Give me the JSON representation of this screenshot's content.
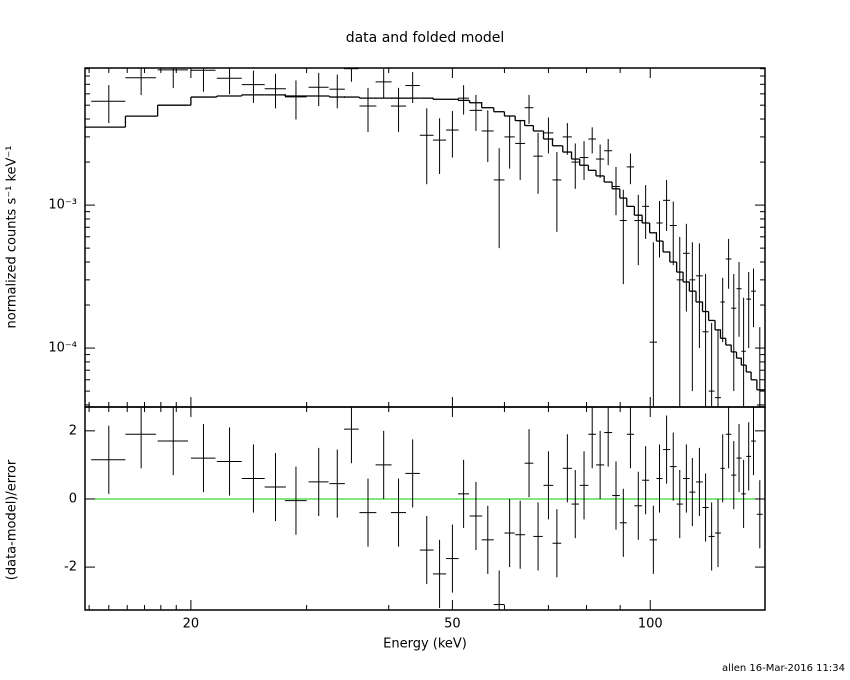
{
  "footer": "allen 16-Mar-2016 11:34",
  "chart_data": [
    {
      "type": "errorbar",
      "title": "data and folded model",
      "ylabel": "normalized counts s⁻¹ keV⁻¹",
      "xlog": true,
      "ylog": true,
      "xlim": [
        13.8,
        149.5
      ],
      "ylim": [
        3.87e-05,
        0.0091
      ],
      "xticks": [
        20,
        50,
        100
      ],
      "show_xtick_labels": false,
      "xticks_minor": [
        14,
        15,
        16,
        17,
        18,
        19,
        30,
        40,
        60,
        70,
        80,
        90
      ],
      "yticks": [
        {
          "value": 0.001,
          "label": "10⁻³"
        },
        {
          "value": 0.0001,
          "label": "10⁻⁴"
        }
      ],
      "yticks_minor": [
        4e-05,
        5e-05,
        6e-05,
        7e-05,
        8e-05,
        9e-05,
        0.0002,
        0.0003,
        0.0004,
        0.0005,
        0.0006,
        0.0007,
        0.0008,
        0.0009,
        0.002,
        0.003,
        0.004,
        0.005,
        0.006,
        0.007,
        0.008,
        0.009
      ],
      "data": {
        "color": "#000000",
        "x": [
          15.0,
          16.8,
          18.8,
          20.9,
          22.9,
          24.9,
          26.9,
          28.9,
          31.3,
          33.4,
          35.1,
          37.2,
          39.3,
          41.4,
          43.5,
          45.7,
          47.8,
          50.0,
          52.0,
          54.3,
          56.6,
          58.9,
          61.1,
          63.4,
          65.4,
          67.5,
          70.0,
          72.1,
          74.8,
          76.9,
          79.3,
          81.6,
          83.9,
          86.3,
          88.7,
          91.0,
          93.3,
          95.9,
          98.4,
          101.1,
          103.3,
          105.9,
          108.4,
          110.9,
          113.5,
          115.9,
          118.8,
          121.4,
          124.0,
          126.8,
          128.9,
          131.6,
          134.0,
          136.5,
          138.7,
          141.2,
          143.6,
          146.8
        ],
        "xerr": [
          0.9,
          0.9,
          1.0,
          0.9,
          1.0,
          1.0,
          1.0,
          1.1,
          1.1,
          0.9,
          0.9,
          1.1,
          1.1,
          1.1,
          1.1,
          1.1,
          1.1,
          1.1,
          1.0,
          1.2,
          1.2,
          1.1,
          1.1,
          1.1,
          1.0,
          1.1,
          1.2,
          1.1,
          1.2,
          1.0,
          1.2,
          1.1,
          1.2,
          1.2,
          1.2,
          1.1,
          1.2,
          1.3,
          1.2,
          1.3,
          1.1,
          1.3,
          1.3,
          1.2,
          1.3,
          1.2,
          1.4,
          1.3,
          1.3,
          1.3,
          1.0,
          1.3,
          1.2,
          1.2,
          1.1,
          1.2,
          1.2,
          1.5
        ],
        "values": [
          0.00533,
          0.00777,
          0.00883,
          0.00878,
          0.00771,
          0.00696,
          0.00652,
          0.00571,
          0.00667,
          0.00647,
          0.009,
          0.00493,
          0.00728,
          0.00493,
          0.00686,
          0.00308,
          0.00285,
          0.00335,
          0.0056,
          0.0046,
          0.0033,
          0.0015,
          0.003,
          0.0027,
          0.0048,
          0.0022,
          0.0032,
          0.0015,
          0.003,
          0.002,
          0.00215,
          0.0029,
          0.0021,
          0.0024,
          0.00135,
          0.00078,
          0.00185,
          0.00078,
          0.00098,
          0.00011,
          0.00075,
          0.00108,
          0.00072,
          0.0003,
          0.00046,
          0.0003,
          0.00032,
          0.00013,
          5e-05,
          4.5e-05,
          0.00021,
          0.00042,
          0.00019,
          0.00026,
          9.5e-05,
          0.00022,
          0.00025,
          4e-05
        ],
        "errors": [
          0.00158,
          0.00189,
          0.00225,
          0.00257,
          0.00174,
          0.00177,
          0.00177,
          0.00174,
          0.00174,
          0.00171,
          0.00171,
          0.00168,
          0.00168,
          0.00168,
          0.00168,
          0.00168,
          0.0012,
          0.0012,
          0.0013,
          0.0013,
          0.0013,
          0.001,
          0.0012,
          0.0012,
          0.0011,
          0.001,
          0.0009,
          0.00085,
          0.00075,
          0.0007,
          0.00065,
          0.0006,
          0.00055,
          0.0005,
          0.0005,
          0.0005,
          0.00045,
          0.0004,
          0.0004,
          0.00044,
          0.00032,
          0.00042,
          0.00034,
          0.0003,
          0.00028,
          0.00025,
          0.00022,
          0.0002,
          0.0001,
          9e-05,
          0.0001,
          0.00016,
          0.00014,
          0.00014,
          0.00013,
          0.00012,
          0.00011,
          0.0001
        ]
      },
      "model": {
        "color": "#000000",
        "values": [
          0.00351,
          0.00419,
          0.005,
          0.0057,
          0.0058,
          0.0059,
          0.0059,
          0.0058,
          0.0058,
          0.0057,
          0.0057,
          0.0056,
          0.0056,
          0.0056,
          0.0056,
          0.0056,
          0.0055,
          0.0055,
          0.0054,
          0.0052,
          0.0048,
          0.0045,
          0.0042,
          0.0039,
          0.0036,
          0.0033,
          0.0029,
          0.0026,
          0.00235,
          0.0021,
          0.0019,
          0.00175,
          0.0016,
          0.00145,
          0.0013,
          0.00112,
          0.00098,
          0.00085,
          0.00075,
          0.00064,
          0.00056,
          0.00047,
          0.0004,
          0.00034,
          0.00029,
          0.00025,
          0.00021,
          0.00018,
          0.000156,
          0.000134,
          0.000117,
          0.000105,
          9.4e-05,
          8.5e-05,
          7.6e-05,
          6.8e-05,
          6e-05,
          5.1e-05
        ]
      }
    },
    {
      "type": "errorbar",
      "xlabel": "Energy (keV)",
      "ylabel": "(data-model)/error",
      "xlog": true,
      "ylog": false,
      "xlim": [
        13.8,
        149.5
      ],
      "ylim": [
        -3.26,
        2.7
      ],
      "xticks": [
        20,
        50,
        100
      ],
      "show_xtick_labels": true,
      "xticks_minor": [
        14,
        15,
        16,
        17,
        18,
        19,
        30,
        40,
        60,
        70,
        80,
        90
      ],
      "yticks": [
        -2,
        0,
        2
      ],
      "reference_line": {
        "value": 0,
        "color": "#00cc00"
      },
      "data": {
        "color": "#000000",
        "x": [
          15.0,
          16.8,
          18.8,
          20.9,
          22.9,
          24.9,
          26.9,
          28.9,
          31.3,
          33.4,
          35.1,
          37.2,
          39.3,
          41.4,
          43.5,
          45.7,
          47.8,
          50.0,
          52.0,
          54.3,
          56.6,
          58.9,
          61.1,
          63.4,
          65.4,
          67.5,
          70.0,
          72.1,
          74.8,
          76.9,
          79.3,
          81.6,
          83.9,
          86.3,
          88.7,
          91.0,
          93.3,
          95.9,
          98.4,
          101.1,
          103.3,
          105.9,
          108.4,
          110.9,
          113.5,
          115.9,
          118.8,
          121.4,
          124.0,
          126.8,
          128.9,
          131.6,
          134.0,
          136.5,
          138.7,
          141.2,
          143.6,
          146.8
        ],
        "xerr": [
          0.9,
          0.9,
          1.0,
          0.9,
          1.0,
          1.0,
          1.0,
          1.1,
          1.1,
          0.9,
          0.9,
          1.1,
          1.1,
          1.1,
          1.1,
          1.1,
          1.1,
          1.1,
          1.0,
          1.2,
          1.2,
          1.1,
          1.1,
          1.1,
          1.0,
          1.1,
          1.2,
          1.1,
          1.2,
          1.0,
          1.2,
          1.1,
          1.2,
          1.2,
          1.2,
          1.1,
          1.2,
          1.3,
          1.2,
          1.3,
          1.1,
          1.3,
          1.3,
          1.2,
          1.3,
          1.2,
          1.4,
          1.3,
          1.3,
          1.3,
          1.0,
          1.3,
          1.2,
          1.2,
          1.1,
          1.2,
          1.2,
          1.5
        ],
        "values": [
          1.15,
          1.9,
          1.7,
          1.2,
          1.1,
          0.6,
          0.35,
          -0.05,
          0.5,
          0.45,
          2.05,
          -0.4,
          1.0,
          -0.4,
          0.75,
          -1.5,
          -2.2,
          -1.75,
          0.15,
          -0.5,
          -1.2,
          -3.1,
          -1.0,
          -1.05,
          1.05,
          -1.1,
          0.4,
          -1.3,
          0.9,
          -0.15,
          0.4,
          1.9,
          1.0,
          1.95,
          0.1,
          -0.7,
          1.9,
          -0.2,
          0.55,
          -1.2,
          0.6,
          1.45,
          0.95,
          -0.15,
          0.6,
          0.2,
          0.5,
          -0.25,
          -1.1,
          -1.0,
          0.9,
          1.9,
          0.7,
          1.2,
          0.15,
          1.25,
          1.7,
          -0.45
        ],
        "errors": [
          1,
          1,
          1,
          1,
          1,
          1,
          1,
          1,
          1,
          1,
          1,
          1,
          1,
          1,
          1,
          1,
          1,
          1,
          1,
          1,
          1,
          1,
          1,
          1,
          1,
          1,
          1,
          1,
          1,
          1,
          1,
          1,
          1,
          1,
          1,
          1,
          1,
          1,
          1,
          1,
          1,
          1,
          1,
          1,
          1,
          1,
          1,
          1,
          1,
          1,
          1,
          1,
          1,
          1,
          1,
          1,
          1,
          1
        ]
      }
    }
  ]
}
